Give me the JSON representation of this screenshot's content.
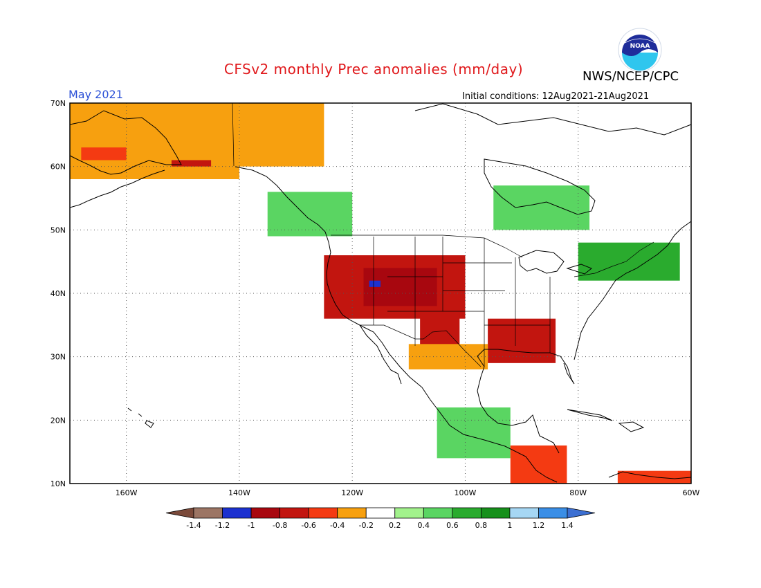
{
  "header": {
    "title": "CFSv2 monthly Prec anomalies (mm/day)",
    "agency": "NWS/NCEP/CPC",
    "logo_text": "NOAA",
    "month": "May 2021",
    "initial_conditions": "Initial conditions: 12Aug2021-21Aug2021"
  },
  "map": {
    "lat_labels": [
      "70N",
      "60N",
      "50N",
      "40N",
      "30N",
      "20N",
      "10N"
    ],
    "lon_labels": [
      "160W",
      "140W",
      "120W",
      "100W",
      "80W",
      "60W"
    ],
    "lat_range": [
      10,
      70
    ],
    "lon_range": [
      -170,
      -60
    ]
  },
  "colorbar": {
    "labels": [
      "-1.4",
      "-1.2",
      "-1",
      "-0.8",
      "-0.6",
      "-0.4",
      "-0.2",
      "0.2",
      "0.4",
      "0.6",
      "0.8",
      "1",
      "1.2",
      "1.4"
    ],
    "colors": [
      "#7b4a3a",
      "#9c7564",
      "#1c31d0",
      "#a8070f",
      "#c2150f",
      "#f43a12",
      "#f7a00f",
      "#ffffff",
      "#a2f28c",
      "#5ad562",
      "#2aab2e",
      "#16901b",
      "#a6d7f4",
      "#3a8ee6",
      "#3c6fd2"
    ]
  },
  "chart_data": {
    "type": "heatmap",
    "title": "CFSv2 monthly Prec anomalies (mm/day)",
    "units": "mm/day",
    "region": "North America",
    "valid_month": "May 2021",
    "lat_range": [
      10,
      70
    ],
    "lon_range": [
      -170,
      -60
    ],
    "regions": [
      {
        "lon": [
          -125,
          -100
        ],
        "lat": [
          36,
          46
        ],
        "value": -0.7
      },
      {
        "lon": [
          -118,
          -105
        ],
        "lat": [
          38,
          44
        ],
        "value": -1.0
      },
      {
        "lon": [
          -117,
          -115
        ],
        "lat": [
          41,
          42
        ],
        "value": -1.2
      },
      {
        "lon": [
          -108,
          -101
        ],
        "lat": [
          31,
          37
        ],
        "value": -0.8
      },
      {
        "lon": [
          -96,
          -84
        ],
        "lat": [
          29,
          36
        ],
        "value": -0.8
      },
      {
        "lon": [
          -110,
          -96
        ],
        "lat": [
          28,
          32
        ],
        "value": -0.4
      },
      {
        "lon": [
          -170,
          -140
        ],
        "lat": [
          58,
          70
        ],
        "value": -0.4
      },
      {
        "lon": [
          -140,
          -125
        ],
        "lat": [
          60,
          70
        ],
        "value": -0.4
      },
      {
        "lon": [
          -168,
          -160
        ],
        "lat": [
          61,
          63
        ],
        "value": -0.6
      },
      {
        "lon": [
          -152,
          -145
        ],
        "lat": [
          60,
          61
        ],
        "value": -0.7
      },
      {
        "lon": [
          -95,
          -78
        ],
        "lat": [
          50,
          57
        ],
        "value": 0.4
      },
      {
        "lon": [
          -80,
          -62
        ],
        "lat": [
          42,
          48
        ],
        "value": 0.6
      },
      {
        "lon": [
          -105,
          -92
        ],
        "lat": [
          14,
          22
        ],
        "value": 0.4
      },
      {
        "lon": [
          -92,
          -82
        ],
        "lat": [
          10,
          16
        ],
        "value": -0.6
      },
      {
        "lon": [
          -73,
          -60
        ],
        "lat": [
          10,
          12
        ],
        "value": -0.6
      },
      {
        "lon": [
          -135,
          -120
        ],
        "lat": [
          49,
          56
        ],
        "value": 0.4
      }
    ],
    "colorbar_levels": [
      -1.4,
      -1.2,
      -1,
      -0.8,
      -0.6,
      -0.4,
      -0.2,
      0.2,
      0.4,
      0.6,
      0.8,
      1,
      1.2,
      1.4
    ]
  }
}
